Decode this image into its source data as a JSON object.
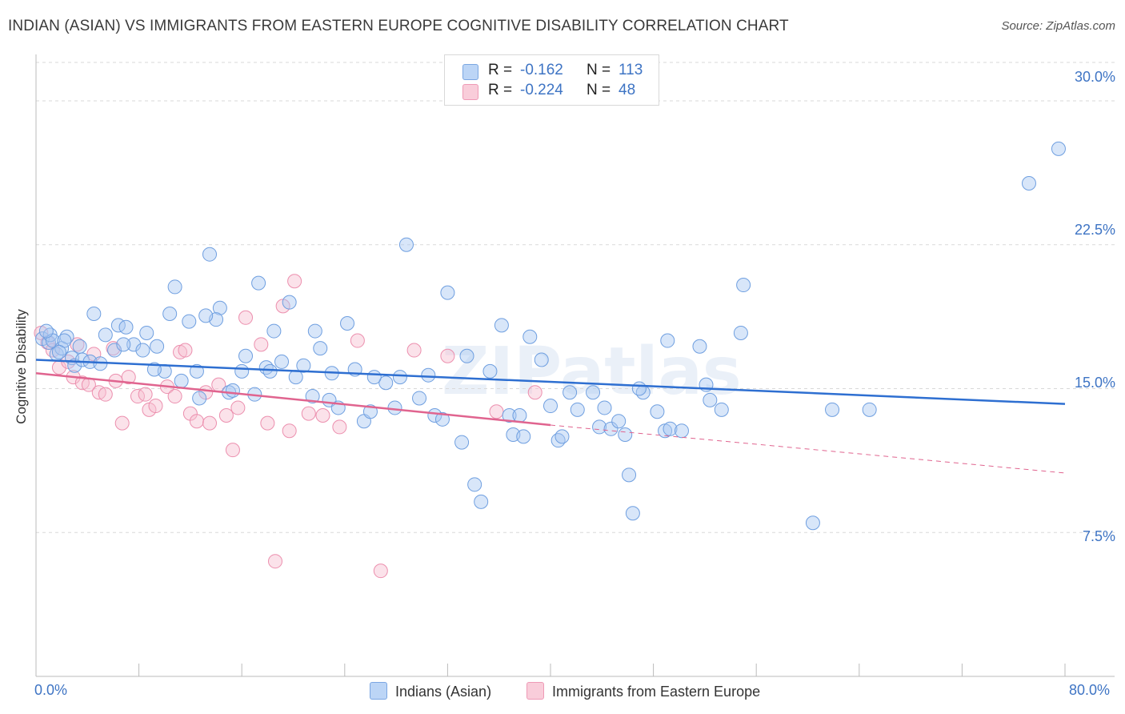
{
  "title": "INDIAN (ASIAN) VS IMMIGRANTS FROM EASTERN EUROPE COGNITIVE DISABILITY CORRELATION CHART",
  "source": "Source: ZipAtlas.com",
  "watermark": "ZIPatlas",
  "legend": {
    "r_label": "R =",
    "n_label": "N =",
    "rows": [
      {
        "r": "-0.162",
        "n": "113"
      },
      {
        "r": "-0.224",
        "n": "48"
      }
    ]
  },
  "colors": {
    "indians_fill": "#a9c8f2",
    "indians_stroke": "#6f9fe0",
    "indians_line": "#2e6fd1",
    "eastern_fill": "#f7bfd1",
    "eastern_stroke": "#ec8fae",
    "eastern_line": "#e0648f",
    "tick_text": "#3e74c4",
    "grid": "#d9d9d9"
  },
  "chart_data": {
    "type": "scatter",
    "title": "INDIAN (ASIAN) VS IMMIGRANTS FROM EASTERN EUROPE COGNITIVE DISABILITY CORRELATION CHART",
    "xlabel": "",
    "ylabel": "Cognitive Disability",
    "xlim": [
      0,
      80
    ],
    "ylim": [
      0,
      32
    ],
    "x_tick_labels": [
      "0.0%",
      "80.0%"
    ],
    "y_ticks": [
      7.5,
      15.0,
      22.5,
      30.0
    ],
    "y_tick_labels": [
      "7.5%",
      "15.0%",
      "22.5%",
      "30.0%"
    ],
    "grid": "horizontal dashed",
    "legend_position": "bottom",
    "series": [
      {
        "name": "Indians (Asian)",
        "trend": {
          "x": [
            0,
            80
          ],
          "y": [
            16.5,
            14.2
          ]
        },
        "points": [
          [
            0.5,
            17.6
          ],
          [
            1.0,
            17.4
          ],
          [
            1.1,
            17.8
          ],
          [
            1.3,
            17.5
          ],
          [
            1.6,
            16.8
          ],
          [
            2.0,
            17.1
          ],
          [
            2.4,
            17.7
          ],
          [
            2.8,
            16.6
          ],
          [
            3.0,
            16.2
          ],
          [
            3.4,
            17.2
          ],
          [
            3.6,
            16.5
          ],
          [
            4.2,
            16.4
          ],
          [
            4.5,
            18.9
          ],
          [
            5.0,
            16.3
          ],
          [
            5.4,
            17.8
          ],
          [
            6.1,
            17.0
          ],
          [
            6.4,
            18.3
          ],
          [
            7.0,
            18.2
          ],
          [
            7.6,
            17.3
          ],
          [
            8.6,
            17.9
          ],
          [
            8.3,
            17.0
          ],
          [
            9.4,
            17.2
          ],
          [
            10.0,
            15.9
          ],
          [
            10.4,
            18.9
          ],
          [
            10.8,
            20.3
          ],
          [
            11.3,
            15.4
          ],
          [
            11.9,
            18.5
          ],
          [
            12.5,
            15.9
          ],
          [
            12.7,
            14.5
          ],
          [
            13.5,
            22.0
          ],
          [
            14.3,
            19.2
          ],
          [
            14.0,
            18.6
          ],
          [
            15.0,
            14.8
          ],
          [
            15.3,
            14.9
          ],
          [
            16.0,
            15.9
          ],
          [
            16.3,
            16.7
          ],
          [
            17.0,
            14.7
          ],
          [
            17.3,
            20.5
          ],
          [
            17.9,
            16.1
          ],
          [
            18.5,
            18.0
          ],
          [
            19.1,
            16.4
          ],
          [
            19.7,
            19.5
          ],
          [
            20.2,
            15.6
          ],
          [
            20.8,
            16.2
          ],
          [
            21.5,
            14.6
          ],
          [
            21.7,
            18.0
          ],
          [
            22.1,
            17.1
          ],
          [
            22.8,
            14.4
          ],
          [
            23.0,
            15.8
          ],
          [
            23.5,
            14.0
          ],
          [
            24.2,
            18.4
          ],
          [
            24.8,
            16.0
          ],
          [
            25.5,
            13.3
          ],
          [
            26.0,
            13.8
          ],
          [
            27.2,
            15.3
          ],
          [
            27.9,
            14.0
          ],
          [
            28.3,
            15.6
          ],
          [
            28.8,
            22.5
          ],
          [
            29.8,
            14.5
          ],
          [
            30.5,
            15.7
          ],
          [
            31.0,
            13.6
          ],
          [
            31.6,
            13.4
          ],
          [
            32.0,
            20.0
          ],
          [
            33.1,
            12.2
          ],
          [
            33.5,
            16.7
          ],
          [
            34.1,
            10.0
          ],
          [
            34.6,
            9.1
          ],
          [
            35.3,
            15.9
          ],
          [
            36.2,
            18.3
          ],
          [
            36.8,
            13.6
          ],
          [
            37.1,
            12.6
          ],
          [
            37.6,
            13.6
          ],
          [
            38.4,
            17.7
          ],
          [
            39.3,
            16.5
          ],
          [
            40.0,
            14.1
          ],
          [
            40.6,
            12.3
          ],
          [
            40.9,
            12.5
          ],
          [
            41.5,
            14.8
          ],
          [
            42.1,
            13.9
          ],
          [
            43.3,
            14.8
          ],
          [
            43.8,
            13.0
          ],
          [
            44.2,
            14.0
          ],
          [
            44.7,
            12.9
          ],
          [
            45.3,
            13.3
          ],
          [
            45.8,
            12.6
          ],
          [
            46.1,
            10.5
          ],
          [
            46.4,
            8.5
          ],
          [
            47.2,
            14.8
          ],
          [
            48.3,
            13.8
          ],
          [
            48.9,
            12.8
          ],
          [
            49.3,
            12.9
          ],
          [
            49.1,
            17.5
          ],
          [
            50.2,
            12.8
          ],
          [
            51.6,
            17.2
          ],
          [
            52.1,
            15.2
          ],
          [
            52.4,
            14.4
          ],
          [
            53.3,
            13.9
          ],
          [
            54.8,
            17.9
          ],
          [
            55.0,
            20.4
          ],
          [
            60.4,
            8.0
          ],
          [
            61.9,
            13.9
          ],
          [
            64.8,
            13.9
          ],
          [
            77.2,
            25.7
          ],
          [
            79.5,
            27.5
          ],
          [
            0.8,
            18.0
          ],
          [
            2.2,
            17.5
          ],
          [
            1.8,
            16.9
          ],
          [
            6.8,
            17.3
          ],
          [
            9.2,
            16.0
          ],
          [
            26.3,
            15.6
          ],
          [
            18.2,
            15.9
          ],
          [
            13.2,
            18.8
          ],
          [
            37.9,
            12.5
          ],
          [
            46.9,
            15.0
          ]
        ]
      },
      {
        "name": "Immigrants from Eastern Europe",
        "trend": {
          "x": [
            0,
            40
          ],
          "y": [
            15.8,
            13.1
          ]
        },
        "trend_dashed": {
          "x": [
            40,
            80
          ],
          "y": [
            13.1,
            10.6
          ]
        },
        "points": [
          [
            0.4,
            17.9
          ],
          [
            0.9,
            17.4
          ],
          [
            1.3,
            17.0
          ],
          [
            1.8,
            16.1
          ],
          [
            2.5,
            16.4
          ],
          [
            2.9,
            15.6
          ],
          [
            3.2,
            17.3
          ],
          [
            3.6,
            15.3
          ],
          [
            4.1,
            15.2
          ],
          [
            4.5,
            16.8
          ],
          [
            4.9,
            14.8
          ],
          [
            5.4,
            14.7
          ],
          [
            6.2,
            15.4
          ],
          [
            6.7,
            13.2
          ],
          [
            7.2,
            15.6
          ],
          [
            7.9,
            14.6
          ],
          [
            8.5,
            14.7
          ],
          [
            8.8,
            13.9
          ],
          [
            9.3,
            14.1
          ],
          [
            10.2,
            15.1
          ],
          [
            10.8,
            14.6
          ],
          [
            11.2,
            16.9
          ],
          [
            11.6,
            17.0
          ],
          [
            12.0,
            13.7
          ],
          [
            12.5,
            13.3
          ],
          [
            13.2,
            14.8
          ],
          [
            13.5,
            13.2
          ],
          [
            14.2,
            15.2
          ],
          [
            14.8,
            13.6
          ],
          [
            15.3,
            11.8
          ],
          [
            15.7,
            14.0
          ],
          [
            16.3,
            18.7
          ],
          [
            17.5,
            17.3
          ],
          [
            18.0,
            13.2
          ],
          [
            18.6,
            6.0
          ],
          [
            19.2,
            19.3
          ],
          [
            19.7,
            12.8
          ],
          [
            20.1,
            20.6
          ],
          [
            21.2,
            13.7
          ],
          [
            22.3,
            13.6
          ],
          [
            23.6,
            13.0
          ],
          [
            25.0,
            17.5
          ],
          [
            26.8,
            5.5
          ],
          [
            29.4,
            17.0
          ],
          [
            32.0,
            16.7
          ],
          [
            35.8,
            13.8
          ],
          [
            38.8,
            14.8
          ],
          [
            6.0,
            17.1
          ]
        ]
      }
    ]
  },
  "bottom_legend": [
    {
      "label": "Indians (Asian)"
    },
    {
      "label": "Immigrants from Eastern Europe"
    }
  ]
}
